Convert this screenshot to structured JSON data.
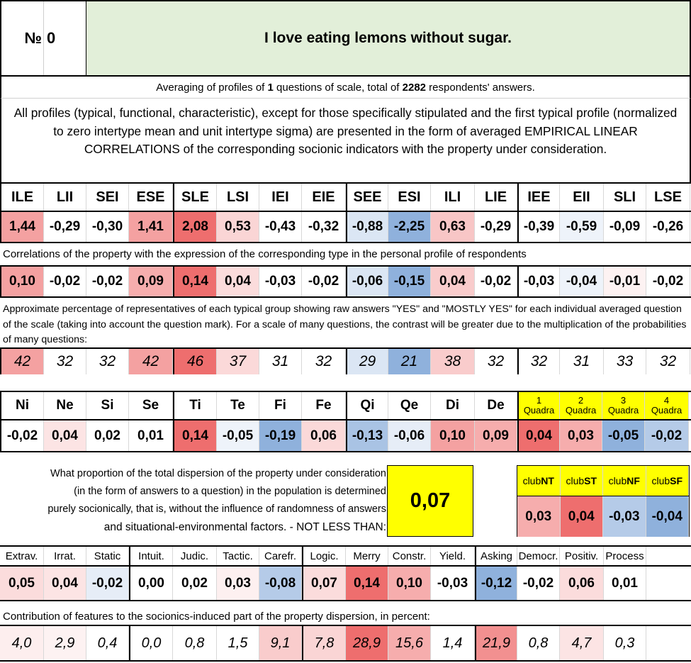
{
  "header": {
    "no_label": "№",
    "no_value": "0",
    "question": "I love eating lemons without sugar.",
    "question_bg": "#e2efd9"
  },
  "averaging": {
    "prefix": "Averaging of profiles of ",
    "questions": "1",
    "middle": " questions of scale, total of ",
    "respondents": "2282",
    "suffix": " respondents' answers."
  },
  "intro_text": "All profiles (typical, functional, characteristic), except for those specifically stipulated and the first typical profile (normalized to zero intertype mean and unit intertype sigma) are presented in the form of averaged EMPIRICAL LINEAR CORRELATIONS of the corresponding socionic indicators with the property under consideration.",
  "types": {
    "headers": [
      "ILE",
      "LII",
      "SEI",
      "ESE",
      "SLE",
      "LSI",
      "IEI",
      "EIE",
      "SEE",
      "ESI",
      "ILI",
      "LIE",
      "IEE",
      "EII",
      "SLI",
      "LSE"
    ],
    "normalized": [
      "1,44",
      "-0,29",
      "-0,30",
      "1,41",
      "2,08",
      "0,53",
      "-0,43",
      "-0,32",
      "-0,88",
      "-2,25",
      "0,63",
      "-0,29",
      "-0,39",
      "-0,59",
      "-0,09",
      "-0,26"
    ],
    "normalized_colors": [
      "#f4a1a1",
      "#ffffff",
      "#ffffff",
      "#f4a1a1",
      "#ee6e6e",
      "#fad5d5",
      "#ffffff",
      "#ffffff",
      "#dbe6f4",
      "#8fb1dc",
      "#f8c6c6",
      "#ffffff",
      "#ffffff",
      "#eef3fa",
      "#ffffff",
      "#ffffff"
    ],
    "correlation_label": "Correlations of the property with the expression of the corresponding type in the personal profile of respondents",
    "correlations": [
      "0,10",
      "-0,02",
      "-0,02",
      "0,09",
      "0,14",
      "0,04",
      "-0,03",
      "-0,02",
      "-0,06",
      "-0,15",
      "0,04",
      "-0,02",
      "-0,03",
      "-0,04",
      "-0,01",
      "-0,02"
    ],
    "correlation_colors": [
      "#f4a1a1",
      "#ffffff",
      "#ffffff",
      "#f6adad",
      "#ee6e6e",
      "#fbdcdc",
      "#ffffff",
      "#ffffff",
      "#dbe6f4",
      "#8fb1dc",
      "#f9cccc",
      "#ffffff",
      "#ffffff",
      "#eef3fa",
      "#fdf2f2",
      "#ffffff"
    ],
    "percentage_label": "Approximate percentage of representatives of each typical group showing raw answers \"YES\" and \"MOSTLY YES\" for each individual averaged question of the scale (taking into account the question mark). For a scale of many questions, the contrast will be greater due to the multiplication of the probabilities of many questions:",
    "percentages": [
      "42",
      "32",
      "32",
      "42",
      "46",
      "37",
      "31",
      "32",
      "29",
      "21",
      "38",
      "32",
      "32",
      "31",
      "33",
      "32"
    ],
    "percentage_colors": [
      "#f4a1a1",
      "#ffffff",
      "#ffffff",
      "#f4a1a1",
      "#ee6e6e",
      "#fbd9d9",
      "#ffffff",
      "#ffffff",
      "#dbe6f4",
      "#8fb1dc",
      "#f9cccc",
      "#ffffff",
      "#ffffff",
      "#ffffff",
      "#ffffff",
      "#ffffff"
    ]
  },
  "functions": {
    "headers": [
      "Ni",
      "Ne",
      "Si",
      "Se",
      "Ti",
      "Te",
      "Fi",
      "Fe",
      "Qi",
      "Qe",
      "Di",
      "De"
    ],
    "values": [
      "-0,02",
      "0,04",
      "0,02",
      "0,01",
      "0,14",
      "-0,05",
      "-0,19",
      "0,06",
      "-0,13",
      "-0,06",
      "0,10",
      "0,09"
    ],
    "colors": [
      "#ffffff",
      "#fce4e4",
      "#ffffff",
      "#ffffff",
      "#ee6e6e",
      "#eef3fa",
      "#8fb1dc",
      "#fbd9d9",
      "#a9c3e4",
      "#e6edf7",
      "#f4a1a1",
      "#f6adad"
    ]
  },
  "quadras": {
    "headers": [
      {
        "num": "1",
        "label": "Quadra"
      },
      {
        "num": "2",
        "label": "Quadra"
      },
      {
        "num": "3",
        "label": "Quadra"
      },
      {
        "num": "4",
        "label": "Quadra"
      }
    ],
    "header_bg": "#ffff00",
    "values": [
      "0,04",
      "0,03",
      "-0,05",
      "-0,02"
    ],
    "colors": [
      "#ee6e6e",
      "#f6adad",
      "#8fb1dc",
      "#b5cbe8"
    ]
  },
  "dispersion": {
    "text": [
      "What proportion of the total dispersion of the property under consideration",
      "(in the form of answers to a question) in the population is determined",
      "purely socionically, that is, without the influence of randomness of answers",
      "and situational-environmental factors. - NOT LESS THAN:"
    ],
    "value": "0,07",
    "value_bg": "#ffff00"
  },
  "clubs": {
    "prefix": "club",
    "names": [
      "NT",
      "ST",
      "NF",
      "SF"
    ],
    "header_bg": "#ffff00",
    "values": [
      "0,03",
      "0,04",
      "-0,03",
      "-0,04"
    ],
    "colors": [
      "#f6adad",
      "#ee6e6e",
      "#b5cbe8",
      "#8fb1dc"
    ]
  },
  "features": {
    "headers": [
      "Extrav.",
      "Irrat.",
      "Static",
      "Intuit.",
      "Judic.",
      "Tactic.",
      "Carefr.",
      "Logic.",
      "Merry",
      "Constr.",
      "Yield.",
      "Asking",
      "Democr.",
      "Positiv.",
      "Process"
    ],
    "values": [
      "0,05",
      "0,04",
      "-0,02",
      "0,00",
      "0,02",
      "0,03",
      "-0,08",
      "0,07",
      "0,14",
      "0,10",
      "-0,03",
      "-0,12",
      "-0,02",
      "0,06",
      "0,01"
    ],
    "colors": [
      "#fbdcdc",
      "#fce4e4",
      "#e6edf7",
      "#ffffff",
      "#ffffff",
      "#fdf0f0",
      "#b5cbe8",
      "#fbdcdc",
      "#ee6e6e",
      "#f6adad",
      "#ffffff",
      "#8fb1dc",
      "#ffffff",
      "#fbdcdc",
      "#ffffff"
    ],
    "contribution_label": "Contribution of features to the socionics-induced part of the property dispersion, in percent:",
    "contributions": [
      "4,0",
      "2,9",
      "0,4",
      "0,0",
      "0,8",
      "1,5",
      "9,1",
      "7,8",
      "28,9",
      "15,6",
      "1,4",
      "21,9",
      "0,8",
      "4,7",
      "0,3"
    ],
    "contribution_colors": [
      "#fdeeee",
      "#fdf2f2",
      "#ffffff",
      "#ffffff",
      "#ffffff",
      "#ffffff",
      "#f9cccc",
      "#fad5d5",
      "#ee6e6e",
      "#f6adad",
      "#ffffff",
      "#f29090",
      "#ffffff",
      "#fce4e4",
      "#ffffff"
    ]
  }
}
